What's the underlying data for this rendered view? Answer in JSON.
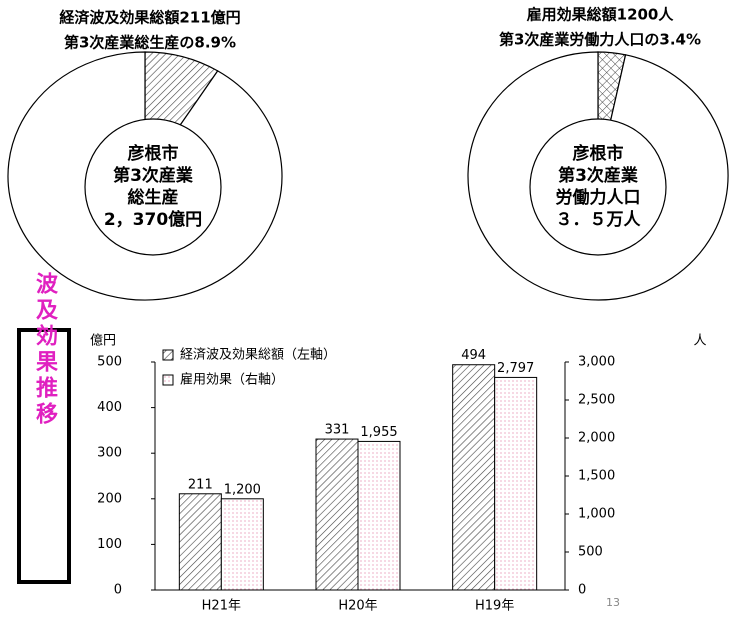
{
  "chart_data": [
    {
      "type": "pie",
      "title_lines": [
        "経済波及効果総額211億円",
        "第3次産業総生産の8.9%"
      ],
      "values": [
        8.9,
        91.1
      ],
      "colors": [
        "#444444",
        "#ffffff"
      ],
      "center_text": [
        "彦根市",
        "第3次産業",
        "総生産",
        "2，370億円"
      ]
    },
    {
      "type": "pie",
      "title_lines": [
        "雇用効果総額1200人",
        "第3次産業労働力人口の3.4%"
      ],
      "values": [
        3.4,
        96.6
      ],
      "colors": [
        "#444444",
        "#ffffff"
      ],
      "center_text": [
        "彦根市",
        "第3次産業",
        "労働力人口",
        "３．５万人"
      ]
    },
    {
      "type": "bar",
      "categories": [
        "H21年",
        "H20年",
        "H19年"
      ],
      "y_label": "億円",
      "y2_label": "人",
      "series": [
        {
          "name": "経済波及効果総額（左軸）",
          "color": "#444444",
          "values": [
            211,
            331,
            494
          ]
        },
        {
          "name": "雇用効果（右軸）",
          "color": "#e07aa0",
          "axis": "y2",
          "values": [
            1200,
            1955,
            2797
          ],
          "value_labels": [
            "1,200",
            "1,955",
            "2,797"
          ]
        }
      ],
      "ylim": [
        0,
        500
      ],
      "yticks": [
        0,
        100,
        200,
        300,
        400,
        500
      ],
      "y2lim": [
        0,
        3000
      ],
      "y2ticks": [
        0,
        500,
        {
          "value": 1000,
          "label": "1,000"
        },
        {
          "value": 1500,
          "label": "1,500"
        },
        {
          "value": 2000,
          "label": "2,000"
        },
        {
          "value": 2500,
          "label": "2,500"
        },
        {
          "value": 3000,
          "label": "3,000"
        }
      ]
    }
  ],
  "side_label": "波及効果推移",
  "page_number": "13"
}
